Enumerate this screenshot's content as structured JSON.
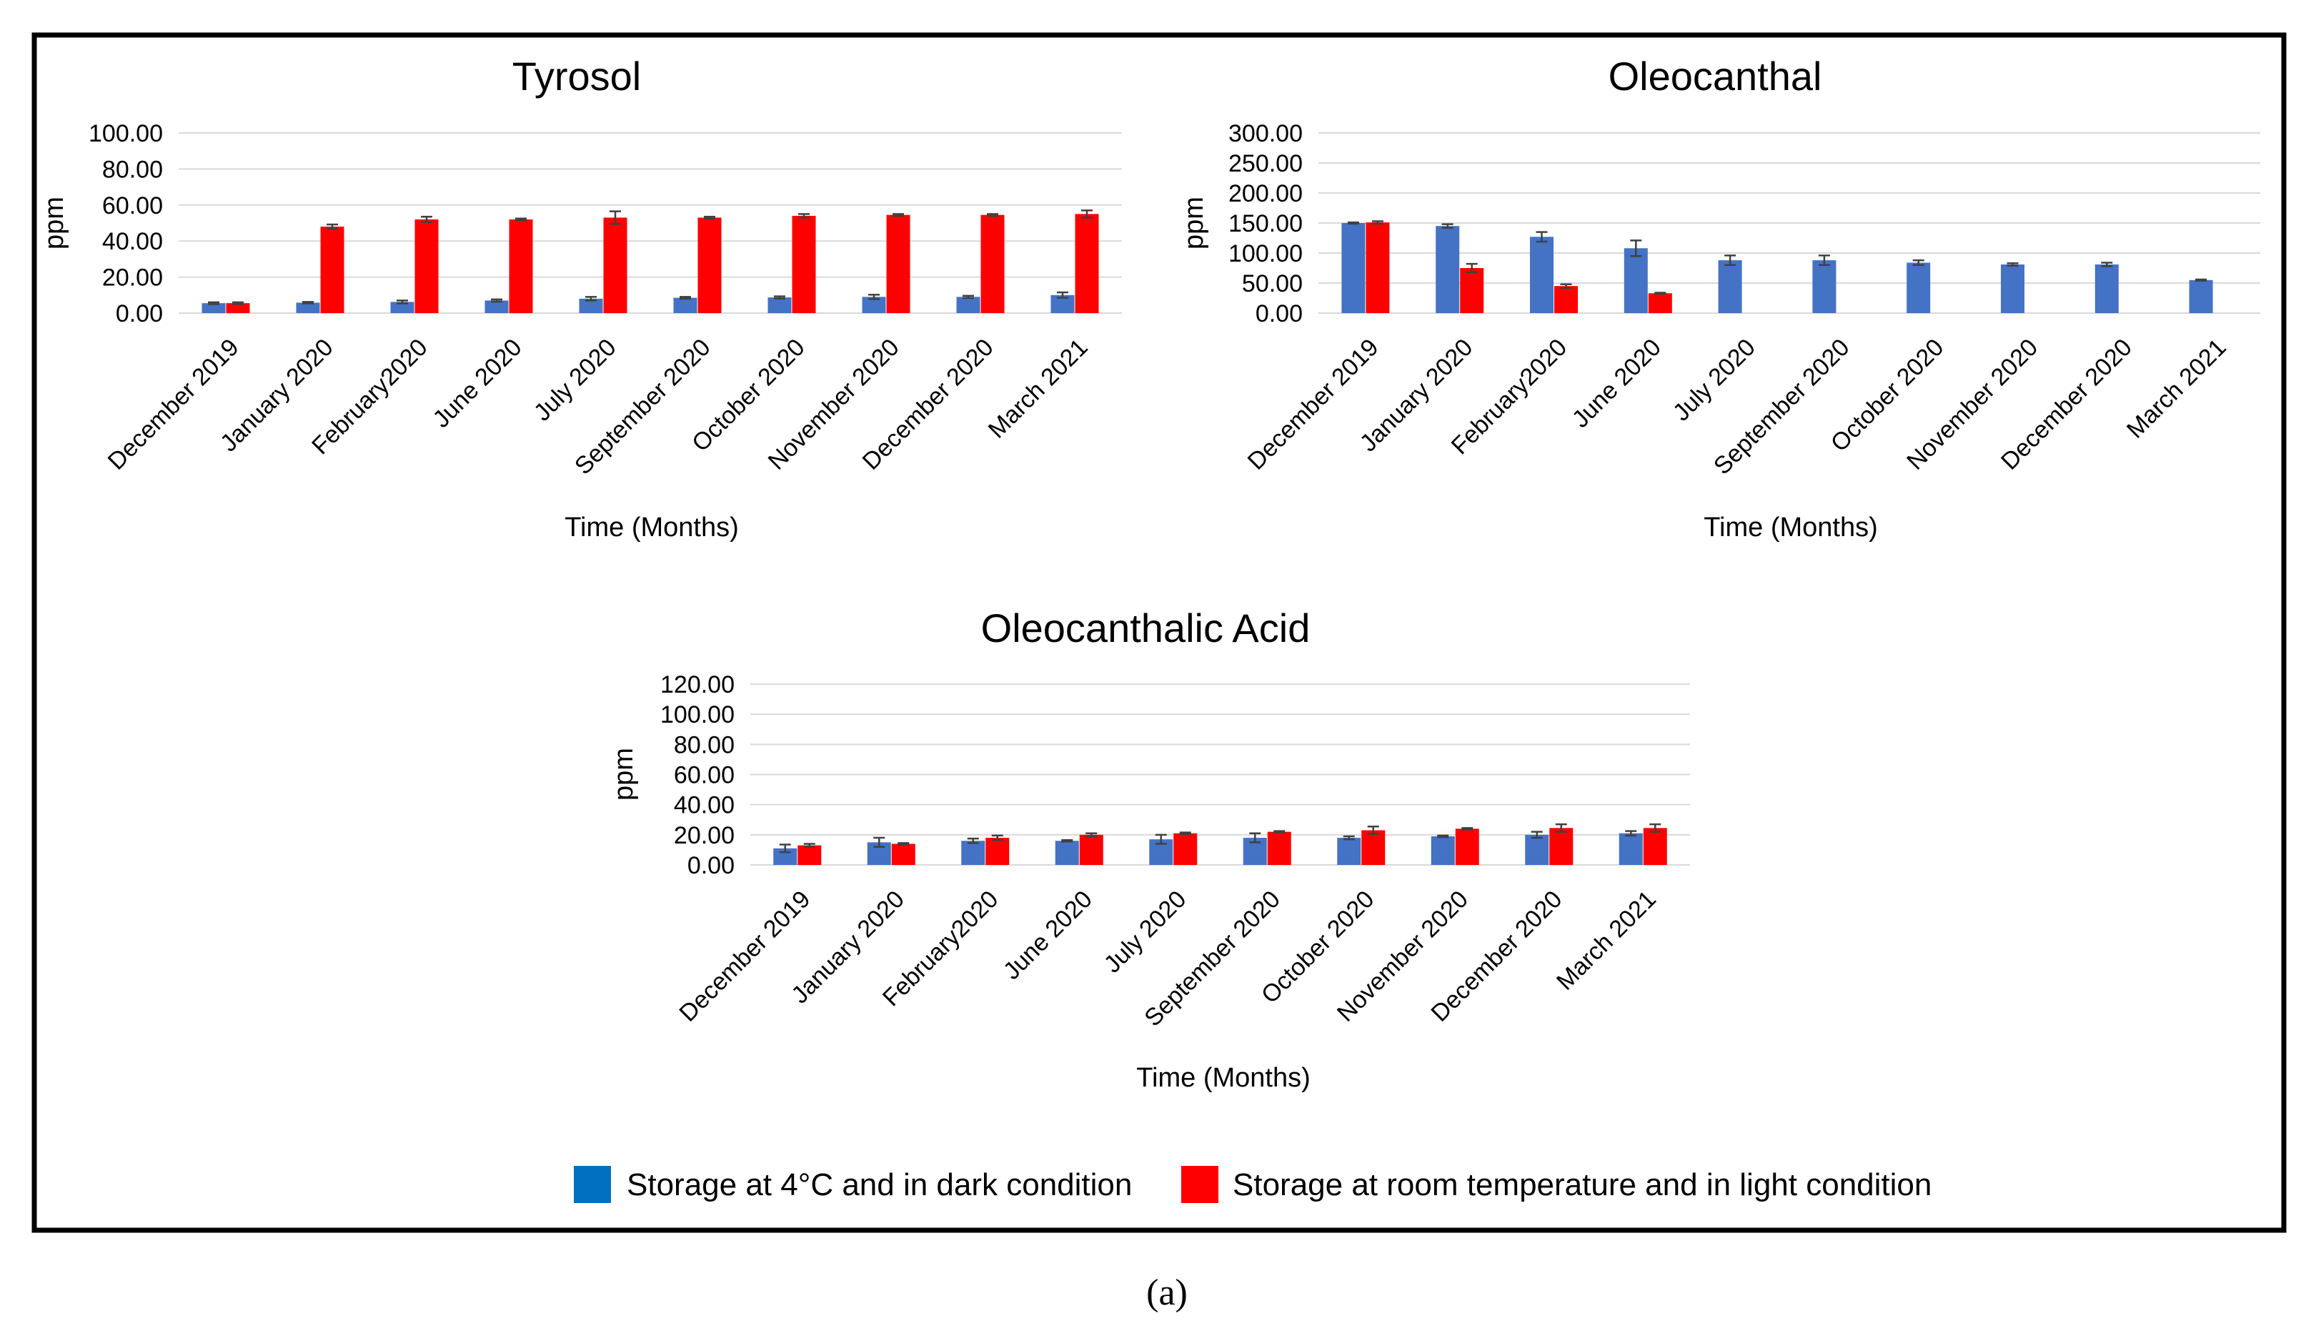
{
  "colors": {
    "dark": "#4472C4",
    "light": "#FF0000",
    "grid": "#D9D9D9",
    "error": "#404040"
  },
  "caption": "(a)",
  "legend": {
    "items": [
      {
        "label": "Storage at 4°C and in dark condition",
        "color": "#0070C0"
      },
      {
        "label": "Storage at room temperature and in light condition",
        "color": "#FF0000"
      }
    ]
  },
  "chart_data": [
    {
      "type": "bar",
      "title": "Tyrosol",
      "xlabel": "Time (Months)",
      "ylabel": "ppm",
      "ylim": [
        0,
        100
      ],
      "yticks": [
        "0.00",
        "20.00",
        "40.00",
        "60.00",
        "80.00",
        "100.00"
      ],
      "categories": [
        "December 2019",
        "January 2020",
        "February2020",
        "June 2020",
        "July 2020",
        "September 2020",
        "October 2020",
        "November 2020",
        "December 2020",
        "March 2021"
      ],
      "series": [
        {
          "name": "Storage at 4°C and in dark condition",
          "values": [
            5.5,
            5.8,
            6.2,
            7,
            8,
            8.5,
            8.7,
            9,
            9,
            10
          ],
          "errors": [
            0.5,
            0.4,
            0.8,
            0.6,
            1,
            0.5,
            0.6,
            1.2,
            0.6,
            1.5
          ]
        },
        {
          "name": "Storage at room temperature and in light condition",
          "values": [
            5.5,
            48,
            52,
            52,
            53,
            53,
            54,
            54.5,
            54.5,
            55
          ],
          "errors": [
            0.5,
            1.2,
            1.5,
            0.5,
            3.5,
            0.5,
            1,
            0.5,
            0.5,
            2
          ]
        }
      ]
    },
    {
      "type": "bar",
      "title": "Oleocanthal",
      "xlabel": "Time (Months)",
      "ylabel": "ppm",
      "ylim": [
        0,
        300
      ],
      "yticks": [
        "0.00",
        "50.00",
        "100.00",
        "150.00",
        "200.00",
        "250.00",
        "300.00"
      ],
      "categories": [
        "December 2019",
        "January 2020",
        "February2020",
        "June 2020",
        "July 2020",
        "September 2020",
        "October 2020",
        "November 2020",
        "December 2020",
        "March 2021"
      ],
      "series": [
        {
          "name": "Storage at 4°C and in dark condition",
          "values": [
            150,
            145,
            127,
            108,
            88,
            88,
            84,
            81,
            81,
            55
          ],
          "errors": [
            1,
            3,
            8,
            13,
            8,
            8,
            4,
            2,
            3,
            1
          ]
        },
        {
          "name": "Storage at room temperature and in light condition",
          "values": [
            151,
            75,
            45,
            33,
            null,
            null,
            null,
            null,
            null,
            null
          ],
          "errors": [
            2,
            7,
            3,
            1,
            null,
            null,
            null,
            null,
            null,
            null
          ]
        }
      ]
    },
    {
      "type": "bar",
      "title": "Oleocanthalic Acid",
      "xlabel": "Time (Months)",
      "ylabel": "ppm",
      "ylim": [
        0,
        120
      ],
      "yticks": [
        "0.00",
        "20.00",
        "40.00",
        "60.00",
        "80.00",
        "100.00",
        "120.00"
      ],
      "categories": [
        "December 2019",
        "January 2020",
        "February2020",
        "June 2020",
        "July 2020",
        "September 2020",
        "October 2020",
        "November 2020",
        "December 2020",
        "March 2021"
      ],
      "series": [
        {
          "name": "Storage at 4°C and in dark condition",
          "values": [
            11,
            15,
            16,
            16,
            17,
            18,
            18,
            19,
            20,
            21
          ],
          "errors": [
            2.5,
            3,
            1.5,
            0.5,
            3,
            3,
            1,
            0.5,
            2,
            1.5
          ]
        },
        {
          "name": "Storage at room temperature and in light condition",
          "values": [
            13,
            14,
            18,
            20,
            21,
            22,
            23,
            24,
            24.5,
            24.5
          ],
          "errors": [
            1,
            0.5,
            1.5,
            1,
            0.5,
            0.5,
            2.5,
            0.5,
            2.5,
            2.5
          ]
        }
      ]
    }
  ]
}
